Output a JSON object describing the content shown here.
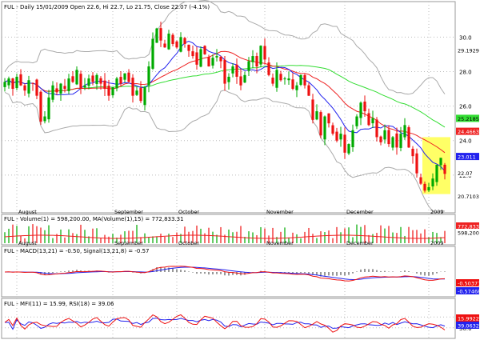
{
  "header": {
    "symbol": "FUL",
    "text": "FUL - Daily 15/01/2009 Open 22.6, Hi 22.7, Lo 21.75, Close 22.07 (-4.1%)"
  },
  "colors": {
    "up": "#00aa00",
    "down": "#ee1111",
    "ma_short": "#2222ee",
    "ma_mid": "#ee2222",
    "ma_long": "#33dd33",
    "bands": "#aaaaaa",
    "highlight": "#ffff66",
    "grid": "#bbbbbb",
    "volume_ma": "#ee2222"
  },
  "chart_data": [
    {
      "id": "price",
      "type": "candlestick",
      "title": "FUL - Daily 15/01/2009 Open 22.6, Hi 22.7, Lo 21.75, Close 22.07 (-4.1%)",
      "ylim": [
        20,
        31.5
      ],
      "y_ticks": [
        30.0,
        28.0,
        26.0,
        24.0,
        22.0
      ],
      "x_labels": [
        "August",
        "September",
        "October",
        "November",
        "December",
        "2009"
      ],
      "x_label_index": [
        3,
        27,
        43,
        65,
        85,
        106
      ],
      "overlays": [
        "Bollinger upper",
        "Bollinger lower",
        "MA short",
        "MA mid",
        "MA long"
      ],
      "right_labels": [
        {
          "text": "29.1929",
          "color": "#ffffff"
        },
        {
          "text": "25.2185",
          "color": "#33dd33"
        },
        {
          "text": "24.4663",
          "color": "#ee2222"
        },
        {
          "text": "23.011",
          "color": "#2222ee"
        },
        {
          "text": "22.07",
          "color": "#ffffff"
        },
        {
          "text": "20.7103",
          "color": "#ffffff"
        }
      ],
      "last": {
        "open": 22.6,
        "high": 22.7,
        "low": 21.75,
        "close": 22.07,
        "change_pct": -4.1
      },
      "closes": [
        27.4,
        27.6,
        27.0,
        27.7,
        27.2,
        26.9,
        27.5,
        27.3,
        26.6,
        25.1,
        25.4,
        26.5,
        27.2,
        26.8,
        27.3,
        27.0,
        27.6,
        27.4,
        28.1,
        27.0,
        27.2,
        27.6,
        27.4,
        27.8,
        27.3,
        27.0,
        26.6,
        27.1,
        27.6,
        27.3,
        27.9,
        27.4,
        26.6,
        26.9,
        26.3,
        27.1,
        28.3,
        29.9,
        30.5,
        29.8,
        29.4,
        30.2,
        29.6,
        29.4,
        30.0,
        29.6,
        29.2,
        28.9,
        28.4,
        29.3,
        29.0,
        28.3,
        28.8,
        28.9,
        28.6,
        27.3,
        27.7,
        28.3,
        27.7,
        27.2,
        27.8,
        28.6,
        28.9,
        28.3,
        29.5,
        28.7,
        27.8,
        27.3,
        28.1,
        27.5,
        27.6,
        27.6,
        27.0,
        27.2,
        27.8,
        27.2,
        26.6,
        25.2,
        25.7,
        24.3,
        25.4,
        25.0,
        24.4,
        24.0,
        24.4,
        23.3,
        23.8,
        24.6,
        25.4,
        26.2,
        25.7,
        24.9,
        25.3,
        24.2,
        23.9,
        24.6,
        23.8,
        24.2,
        23.6,
        24.4,
        24.9,
        23.6,
        23.1,
        22.1,
        21.5,
        21.1,
        21.3,
        21.8,
        22.6,
        23.0,
        22.1
      ]
    },
    {
      "id": "volume",
      "type": "bar",
      "label": "FUL - Volume(1) = 598,200.00, MA(Volume(1),15) = 772,833.31",
      "ma_value": 772833.31,
      "last_value": 598200,
      "right_labels": [
        "772,833",
        "598,200"
      ]
    },
    {
      "id": "macd",
      "type": "line",
      "label": "FUL - MACD(13,21) = -0.50, Signal(13,21,8) = -0.57",
      "series": [
        {
          "name": "MACD(13,21)",
          "last": -0.5
        },
        {
          "name": "Signal(13,21,8)",
          "last": -0.57
        }
      ],
      "right_labels": [
        "-0.503711",
        "-0.574688"
      ]
    },
    {
      "id": "mfi_rsi",
      "type": "line",
      "label": "FUL - MFI(11) = 15.99, RSI(18) = 39.06",
      "ylim": [
        0,
        100
      ],
      "y_ticks": [
        70.0,
        30.0
      ],
      "series": [
        {
          "name": "MFI(11)",
          "last": 15.99
        },
        {
          "name": "RSI(18)",
          "last": 39.06
        }
      ],
      "right_labels": [
        "15.9922",
        "39.0632"
      ]
    }
  ]
}
